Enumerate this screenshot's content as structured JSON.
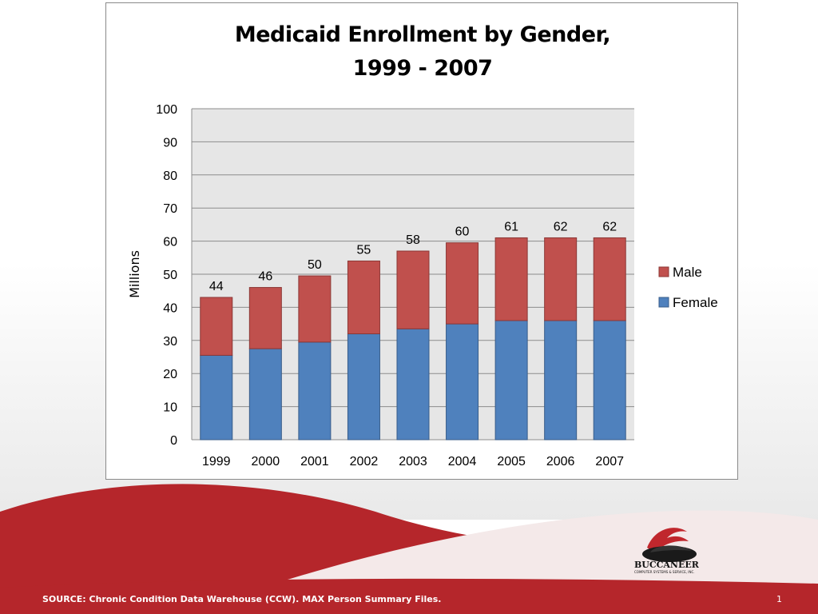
{
  "slide": {
    "source": "SOURCE: Chronic Condition Data Warehouse (CCW).  MAX Person Summary Files.",
    "page_number": "1",
    "logo_name": "BUCCANEER",
    "logo_tagline": "COMPUTER SYSTEMS & SERVICE, INC.",
    "colors": {
      "wave_red": "#b5262b",
      "wave_light": "#f2e4e4"
    }
  },
  "chart_data": {
    "type": "bar",
    "stacked": true,
    "title_lines": [
      "Medicaid Enrollment by Gender,",
      "1999 - 2007"
    ],
    "xlabel": "",
    "ylabel": "Millions",
    "ylim": [
      0,
      100
    ],
    "yticks": [
      0,
      10,
      20,
      30,
      40,
      50,
      60,
      70,
      80,
      90,
      100
    ],
    "grid": true,
    "legend_position": "right",
    "categories": [
      "1999",
      "2000",
      "2001",
      "2002",
      "2003",
      "2004",
      "2005",
      "2006",
      "2007"
    ],
    "series": [
      {
        "name": "Female",
        "color": "#4f81bd",
        "values": [
          25.5,
          27.5,
          29.5,
          32,
          33.5,
          35,
          36,
          36,
          36
        ]
      },
      {
        "name": "Male",
        "color": "#c0504d",
        "values": [
          17.5,
          18.5,
          20,
          22,
          23.5,
          24.5,
          25,
          25,
          25
        ]
      }
    ],
    "totals": [
      "44",
      "46",
      "50",
      "55",
      "58",
      "60",
      "61",
      "62",
      "62"
    ],
    "plot_background": "#e6e6e6"
  }
}
